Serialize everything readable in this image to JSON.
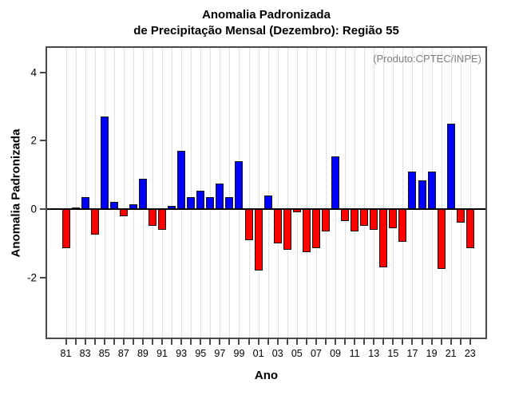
{
  "chart_data": {
    "type": "bar",
    "title_lines": [
      "Anomalia Padronizada",
      "de Precipitação Mensal (Dezembro): Região 55"
    ],
    "annotation": "(Produto:CPTEC/INPE)",
    "xlabel": "Ano",
    "ylabel": "Anomalia Padronizada",
    "categories": [
      "81",
      "82",
      "83",
      "84",
      "85",
      "86",
      "87",
      "88",
      "89",
      "90",
      "91",
      "92",
      "93",
      "94",
      "95",
      "96",
      "97",
      "98",
      "99",
      "00",
      "01",
      "02",
      "03",
      "04",
      "05",
      "06",
      "07",
      "08",
      "09",
      "10",
      "11",
      "12",
      "13",
      "14",
      "15",
      "16",
      "17",
      "18",
      "19",
      "20",
      "21",
      "22",
      "23"
    ],
    "values": [
      -1.15,
      0.05,
      0.35,
      -0.75,
      2.7,
      0.2,
      -0.2,
      0.15,
      0.9,
      -0.5,
      -0.6,
      0.1,
      1.7,
      0.35,
      0.55,
      0.35,
      0.75,
      0.35,
      1.4,
      -0.9,
      -1.8,
      0.4,
      -1.0,
      -1.2,
      -0.1,
      -1.25,
      -1.15,
      -0.65,
      1.55,
      -0.35,
      -0.65,
      -0.5,
      -0.6,
      -1.7,
      -0.55,
      -0.95,
      1.1,
      0.85,
      1.1,
      -1.75,
      2.5,
      -0.4,
      -1.15
    ],
    "x_tick_labels_shown": [
      "81",
      "83",
      "85",
      "87",
      "89",
      "91",
      "93",
      "95",
      "97",
      "99",
      "01",
      "03",
      "05",
      "07",
      "09",
      "11",
      "13",
      "15",
      "17",
      "19",
      "21",
      "23"
    ],
    "yticks": [
      4,
      2,
      0,
      -2
    ],
    "ylim": [
      -3.76,
      4.72
    ],
    "grid": "vertical-dotted",
    "legend": "none",
    "colors": {
      "positive": "#0000ff",
      "negative": "#ff0000",
      "bar_border": "#141414",
      "grid": "#c9c9c9",
      "axis": "#4a4a4a",
      "annotation_text": "#7e7e7e"
    }
  }
}
